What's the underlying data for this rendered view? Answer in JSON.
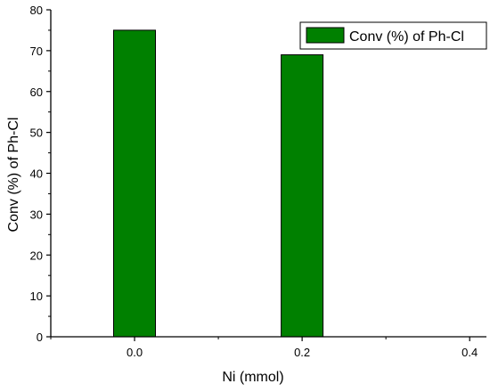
{
  "chart_data": {
    "type": "bar",
    "categories": [
      "0.0",
      "0.2"
    ],
    "x": [
      0.0,
      0.2
    ],
    "series": [
      {
        "name": "Conv (%) of Ph-Cl",
        "values": [
          75,
          69
        ]
      }
    ],
    "xlabel": "Ni (mmol)",
    "ylabel": "Conv (%) of Ph-Cl",
    "xlim": [
      -0.1,
      0.42
    ],
    "ylim": [
      0,
      80
    ],
    "xticks": [
      0.0,
      0.2,
      0.4
    ],
    "xtick_labels": [
      "0.0",
      "0.2",
      "0.4"
    ],
    "yticks": [
      0,
      10,
      20,
      30,
      40,
      50,
      60,
      70,
      80
    ],
    "ytick_labels": [
      "0",
      "10",
      "20",
      "30",
      "40",
      "50",
      "60",
      "70",
      "80"
    ],
    "bar_width": 0.05,
    "bar_color": "#008000",
    "legend_position": "top-right",
    "grid": false
  }
}
